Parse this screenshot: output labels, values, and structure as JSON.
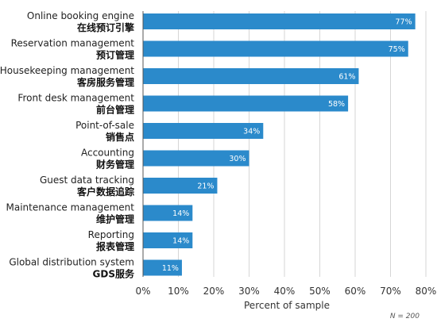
{
  "chart_data": {
    "type": "bar",
    "orientation": "horizontal",
    "categories": [
      {
        "en": "Online booking engine",
        "zh": "在线预订引擎"
      },
      {
        "en": "Reservation management",
        "zh": "预订管理"
      },
      {
        "en": "Housekeeping management",
        "zh": "客房服务管理"
      },
      {
        "en": "Front desk management",
        "zh": "前台管理"
      },
      {
        "en": "Point-of-sale",
        "zh": "销售点"
      },
      {
        "en": "Accounting",
        "zh": "财务管理"
      },
      {
        "en": "Guest data tracking",
        "zh": "客户数据追踪"
      },
      {
        "en": "Maintenance management",
        "zh": "维护管理"
      },
      {
        "en": "Reporting",
        "zh": "报表管理"
      },
      {
        "en": "Global distribution system",
        "zh": "GDS服务"
      }
    ],
    "values": [
      77,
      75,
      61,
      58,
      34,
      30,
      21,
      14,
      14,
      11
    ],
    "value_labels": [
      "77%",
      "75%",
      "61%",
      "58%",
      "34%",
      "30%",
      "21%",
      "14%",
      "14%",
      "11%"
    ],
    "xlabel": "Percent of sample",
    "xlim": [
      0,
      80
    ],
    "xticks": [
      0,
      10,
      20,
      30,
      40,
      50,
      60,
      70,
      80
    ],
    "xtick_labels": [
      "0%",
      "10%",
      "20%",
      "30%",
      "40%",
      "50%",
      "60%",
      "70%",
      "80%"
    ],
    "grid": "vertical",
    "bar_color": "#2b8acb",
    "note": "N = 200"
  }
}
